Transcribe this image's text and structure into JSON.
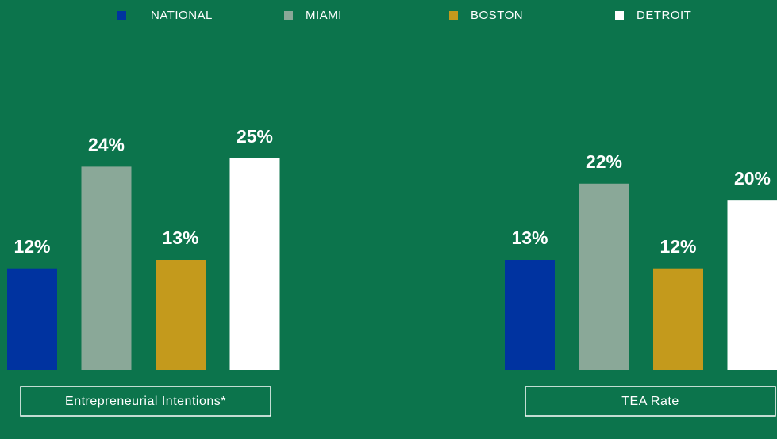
{
  "chart_data": [
    {
      "type": "bar",
      "title": "Entrepreneurial Intentions*",
      "categories": [
        "NATIONAL",
        "MIAMI",
        "BOSTON",
        "DETROIT"
      ],
      "values": [
        12,
        24,
        13,
        25
      ],
      "value_labels": [
        "12%",
        "24%",
        "13%",
        "25%"
      ],
      "colors": [
        "#0033a0",
        "#8aa898",
        "#c49a1c",
        "#ffffff"
      ],
      "ylim": [
        0,
        26
      ]
    },
    {
      "type": "bar",
      "title": "TEA Rate",
      "categories": [
        "NATIONAL",
        "MIAMI",
        "BOSTON",
        "DETROIT"
      ],
      "values": [
        13,
        22,
        12,
        20
      ],
      "value_labels": [
        "13%",
        "22%",
        "12%",
        "20%"
      ],
      "colors": [
        "#0033a0",
        "#8aa898",
        "#c49a1c",
        "#ffffff"
      ],
      "ylim": [
        0,
        26
      ]
    }
  ]
}
